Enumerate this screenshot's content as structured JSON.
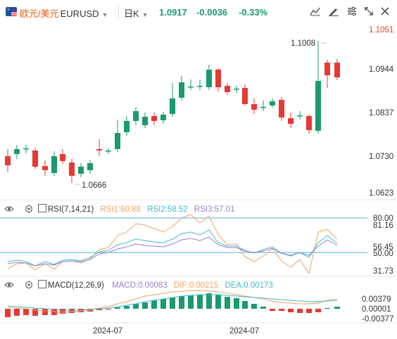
{
  "header": {
    "symbol_cn": "欧元/美元",
    "symbol_code": "EURUSD",
    "period": "日K",
    "price": "1.0917",
    "change": "-0.0036",
    "change_pct": "-0.33%",
    "colors": {
      "up": "#1a9a6e",
      "down": "#e53935",
      "symbol": "#e8590c"
    }
  },
  "toolbar_icons": [
    "chart-icon",
    "draw-icon",
    "settings-icon",
    "fullscreen-icon",
    "close-icon"
  ],
  "price_axis": {
    "labels": [
      "1.1051",
      "1.0944",
      "1.0837",
      "1.0730",
      "1.0623"
    ],
    "top_label": "1.1051"
  },
  "annotations": {
    "high": "1.1008",
    "low": "1.0666"
  },
  "rsi": {
    "name": "RSI(7,14,21)",
    "rsi1": "RSI1:60.88",
    "rsi2": "RSI2:58.52",
    "rsi3": "RSI3:57.01",
    "levels": [
      "80.00",
      "81.16",
      "56.45",
      "50.00",
      "31.73"
    ],
    "colors": {
      "rsi1": "#f5a25d",
      "rsi2": "#3bbcd0",
      "rsi3": "#9a7fd1",
      "guide": "#4db6e0"
    }
  },
  "macd": {
    "name": "MACD(12,26,9)",
    "macd": "MACD:0.00083",
    "dif": "DIF:0.00215",
    "dea": "DEA:0.00173",
    "levels": [
      "0.00379",
      "0.00001",
      "-0.00377"
    ],
    "colors": {
      "macd": "#9a7fd1",
      "dif": "#f5a25d",
      "dea": "#3bbcd0"
    }
  },
  "x_axis": {
    "labels": [
      "2024-07",
      "2024-07"
    ]
  }
}
